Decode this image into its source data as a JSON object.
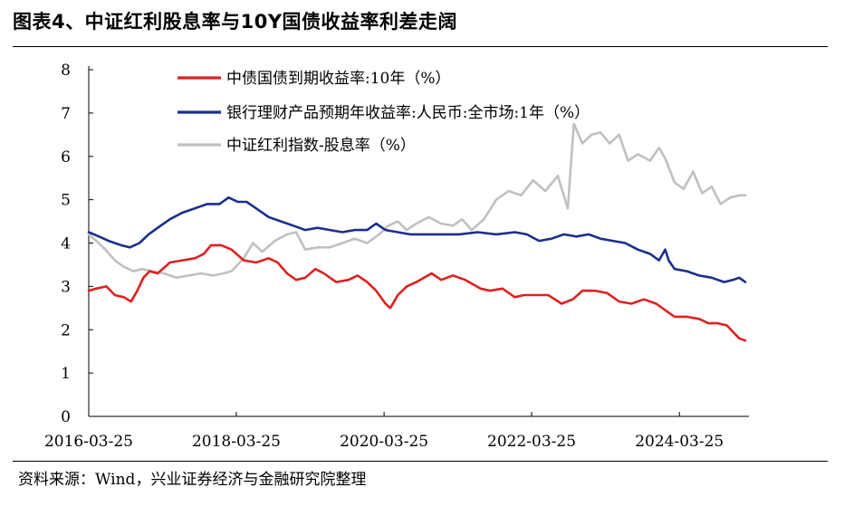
{
  "header": {
    "title": "图表4、中证红利股息率与10Y国债收益率利差走阔"
  },
  "footer": {
    "source": "资料来源：Wind，兴业证券经济与金融研究院整理"
  },
  "chart_data": {
    "type": "line",
    "title": "",
    "xlabel": "",
    "ylabel": "",
    "ylim": [
      0,
      8
    ],
    "yticks": [
      0,
      1,
      2,
      3,
      4,
      5,
      6,
      7,
      8
    ],
    "xrange": [
      "2016-03-25",
      "2025-02-14"
    ],
    "xticks": [
      "2016-03-25",
      "2018-03-25",
      "2020-03-25",
      "2022-03-25",
      "2024-03-25"
    ],
    "grid": false,
    "legend": "top-left",
    "series": [
      {
        "name": "中债国债到期收益率:10年（%）",
        "color": "#e02020",
        "points": [
          [
            "2016-03-25",
            2.9
          ],
          [
            "2016-05-01",
            2.95
          ],
          [
            "2016-06-20",
            3.0
          ],
          [
            "2016-08-01",
            2.8
          ],
          [
            "2016-09-15",
            2.75
          ],
          [
            "2016-10-20",
            2.65
          ],
          [
            "2016-11-20",
            2.9
          ],
          [
            "2016-12-20",
            3.2
          ],
          [
            "2017-01-20",
            3.35
          ],
          [
            "2017-03-01",
            3.3
          ],
          [
            "2017-05-01",
            3.55
          ],
          [
            "2017-07-01",
            3.6
          ],
          [
            "2017-09-01",
            3.65
          ],
          [
            "2017-10-15",
            3.75
          ],
          [
            "2017-11-20",
            3.95
          ],
          [
            "2018-01-10",
            3.95
          ],
          [
            "2018-03-01",
            3.85
          ],
          [
            "2018-05-01",
            3.6
          ],
          [
            "2018-07-01",
            3.55
          ],
          [
            "2018-09-01",
            3.65
          ],
          [
            "2018-10-15",
            3.55
          ],
          [
            "2018-12-01",
            3.3
          ],
          [
            "2019-01-15",
            3.15
          ],
          [
            "2019-03-01",
            3.2
          ],
          [
            "2019-04-20",
            3.4
          ],
          [
            "2019-06-01",
            3.3
          ],
          [
            "2019-08-01",
            3.1
          ],
          [
            "2019-10-01",
            3.15
          ],
          [
            "2019-11-15",
            3.25
          ],
          [
            "2020-01-01",
            3.1
          ],
          [
            "2020-02-15",
            2.9
          ],
          [
            "2020-04-01",
            2.6
          ],
          [
            "2020-04-25",
            2.5
          ],
          [
            "2020-06-01",
            2.8
          ],
          [
            "2020-07-15",
            3.0
          ],
          [
            "2020-09-01",
            3.1
          ],
          [
            "2020-11-15",
            3.3
          ],
          [
            "2021-01-01",
            3.15
          ],
          [
            "2021-03-01",
            3.25
          ],
          [
            "2021-05-01",
            3.15
          ],
          [
            "2021-07-15",
            2.95
          ],
          [
            "2021-09-01",
            2.9
          ],
          [
            "2021-11-01",
            2.95
          ],
          [
            "2022-01-01",
            2.75
          ],
          [
            "2022-02-15",
            2.8
          ],
          [
            "2022-04-15",
            2.8
          ],
          [
            "2022-06-15",
            2.8
          ],
          [
            "2022-08-20",
            2.6
          ],
          [
            "2022-10-15",
            2.7
          ],
          [
            "2022-12-01",
            2.9
          ],
          [
            "2023-02-01",
            2.9
          ],
          [
            "2023-04-01",
            2.85
          ],
          [
            "2023-06-01",
            2.65
          ],
          [
            "2023-08-01",
            2.6
          ],
          [
            "2023-10-01",
            2.7
          ],
          [
            "2023-12-01",
            2.6
          ],
          [
            "2024-01-15",
            2.45
          ],
          [
            "2024-03-01",
            2.3
          ],
          [
            "2024-05-01",
            2.3
          ],
          [
            "2024-07-01",
            2.25
          ],
          [
            "2024-08-15",
            2.15
          ],
          [
            "2024-10-01",
            2.15
          ],
          [
            "2024-11-15",
            2.1
          ],
          [
            "2024-12-15",
            1.95
          ],
          [
            "2025-01-15",
            1.8
          ],
          [
            "2025-02-14",
            1.75
          ]
        ]
      },
      {
        "name": "银行理财产品预期年收益率:人民币:全市场:1年（%）",
        "color": "#1a2f8a",
        "points": [
          [
            "2016-03-25",
            4.25
          ],
          [
            "2016-05-15",
            4.15
          ],
          [
            "2016-07-01",
            4.05
          ],
          [
            "2016-09-01",
            3.95
          ],
          [
            "2016-10-15",
            3.9
          ],
          [
            "2016-12-01",
            4.0
          ],
          [
            "2017-01-15",
            4.2
          ],
          [
            "2017-03-01",
            4.35
          ],
          [
            "2017-05-01",
            4.55
          ],
          [
            "2017-07-01",
            4.7
          ],
          [
            "2017-09-01",
            4.8
          ],
          [
            "2017-11-01",
            4.9
          ],
          [
            "2018-01-01",
            4.9
          ],
          [
            "2018-02-15",
            5.05
          ],
          [
            "2018-04-01",
            4.95
          ],
          [
            "2018-05-15",
            4.95
          ],
          [
            "2018-07-01",
            4.8
          ],
          [
            "2018-09-01",
            4.6
          ],
          [
            "2018-11-01",
            4.5
          ],
          [
            "2019-01-01",
            4.4
          ],
          [
            "2019-03-01",
            4.3
          ],
          [
            "2019-05-01",
            4.35
          ],
          [
            "2019-07-01",
            4.3
          ],
          [
            "2019-09-01",
            4.25
          ],
          [
            "2019-11-01",
            4.3
          ],
          [
            "2020-01-01",
            4.3
          ],
          [
            "2020-02-15",
            4.45
          ],
          [
            "2020-04-01",
            4.3
          ],
          [
            "2020-06-01",
            4.25
          ],
          [
            "2020-08-01",
            4.2
          ],
          [
            "2020-10-01",
            4.2
          ],
          [
            "2021-01-01",
            4.2
          ],
          [
            "2021-04-01",
            4.2
          ],
          [
            "2021-07-01",
            4.25
          ],
          [
            "2021-10-01",
            4.2
          ],
          [
            "2022-01-01",
            4.25
          ],
          [
            "2022-03-01",
            4.2
          ],
          [
            "2022-05-01",
            4.05
          ],
          [
            "2022-07-01",
            4.1
          ],
          [
            "2022-09-01",
            4.2
          ],
          [
            "2022-11-01",
            4.15
          ],
          [
            "2023-01-01",
            4.2
          ],
          [
            "2023-03-01",
            4.1
          ],
          [
            "2023-05-01",
            4.05
          ],
          [
            "2023-07-01",
            4.0
          ],
          [
            "2023-09-01",
            3.85
          ],
          [
            "2023-11-01",
            3.75
          ],
          [
            "2023-12-15",
            3.6
          ],
          [
            "2024-01-15",
            3.85
          ],
          [
            "2024-02-01",
            3.6
          ],
          [
            "2024-03-01",
            3.4
          ],
          [
            "2024-05-01",
            3.35
          ],
          [
            "2024-07-01",
            3.25
          ],
          [
            "2024-09-01",
            3.2
          ],
          [
            "2024-11-01",
            3.1
          ],
          [
            "2024-12-15",
            3.15
          ],
          [
            "2025-01-15",
            3.2
          ],
          [
            "2025-02-14",
            3.1
          ]
        ]
      },
      {
        "name": "中证红利指数-股息率（%）",
        "color": "#c0c0c0",
        "points": [
          [
            "2016-03-25",
            4.2
          ],
          [
            "2016-05-01",
            4.05
          ],
          [
            "2016-06-15",
            3.85
          ],
          [
            "2016-08-01",
            3.6
          ],
          [
            "2016-09-15",
            3.45
          ],
          [
            "2016-11-01",
            3.35
          ],
          [
            "2016-12-15",
            3.4
          ],
          [
            "2017-02-01",
            3.35
          ],
          [
            "2017-04-01",
            3.3
          ],
          [
            "2017-06-01",
            3.2
          ],
          [
            "2017-08-01",
            3.25
          ],
          [
            "2017-10-01",
            3.3
          ],
          [
            "2017-12-01",
            3.25
          ],
          [
            "2018-01-20",
            3.3
          ],
          [
            "2018-03-01",
            3.35
          ],
          [
            "2018-05-01",
            3.65
          ],
          [
            "2018-06-15",
            4.0
          ],
          [
            "2018-08-01",
            3.8
          ],
          [
            "2018-10-01",
            4.05
          ],
          [
            "2018-12-01",
            4.2
          ],
          [
            "2019-01-15",
            4.25
          ],
          [
            "2019-03-01",
            3.85
          ],
          [
            "2019-05-01",
            3.9
          ],
          [
            "2019-07-01",
            3.9
          ],
          [
            "2019-09-01",
            4.0
          ],
          [
            "2019-11-01",
            4.1
          ],
          [
            "2020-01-01",
            4.0
          ],
          [
            "2020-03-01",
            4.2
          ],
          [
            "2020-04-15",
            4.4
          ],
          [
            "2020-06-01",
            4.5
          ],
          [
            "2020-07-15",
            4.3
          ],
          [
            "2020-09-01",
            4.45
          ],
          [
            "2020-11-01",
            4.6
          ],
          [
            "2021-01-01",
            4.45
          ],
          [
            "2021-03-01",
            4.4
          ],
          [
            "2021-04-15",
            4.55
          ],
          [
            "2021-06-01",
            4.3
          ],
          [
            "2021-08-01",
            4.55
          ],
          [
            "2021-10-01",
            5.0
          ],
          [
            "2021-12-01",
            5.2
          ],
          [
            "2022-02-01",
            5.1
          ],
          [
            "2022-04-01",
            5.45
          ],
          [
            "2022-06-01",
            5.2
          ],
          [
            "2022-08-01",
            5.55
          ],
          [
            "2022-09-20",
            4.8
          ],
          [
            "2022-10-20",
            6.75
          ],
          [
            "2022-12-01",
            6.3
          ],
          [
            "2023-01-15",
            6.5
          ],
          [
            "2023-03-01",
            6.55
          ],
          [
            "2023-04-15",
            6.3
          ],
          [
            "2023-06-01",
            6.5
          ],
          [
            "2023-07-15",
            5.9
          ],
          [
            "2023-09-01",
            6.05
          ],
          [
            "2023-11-01",
            5.9
          ],
          [
            "2023-12-15",
            6.2
          ],
          [
            "2024-01-15",
            5.95
          ],
          [
            "2024-03-01",
            5.4
          ],
          [
            "2024-04-15",
            5.25
          ],
          [
            "2024-06-01",
            5.65
          ],
          [
            "2024-07-15",
            5.15
          ],
          [
            "2024-09-01",
            5.3
          ],
          [
            "2024-10-15",
            4.9
          ],
          [
            "2024-12-01",
            5.05
          ],
          [
            "2025-01-15",
            5.1
          ],
          [
            "2025-02-14",
            5.1
          ]
        ]
      }
    ]
  }
}
